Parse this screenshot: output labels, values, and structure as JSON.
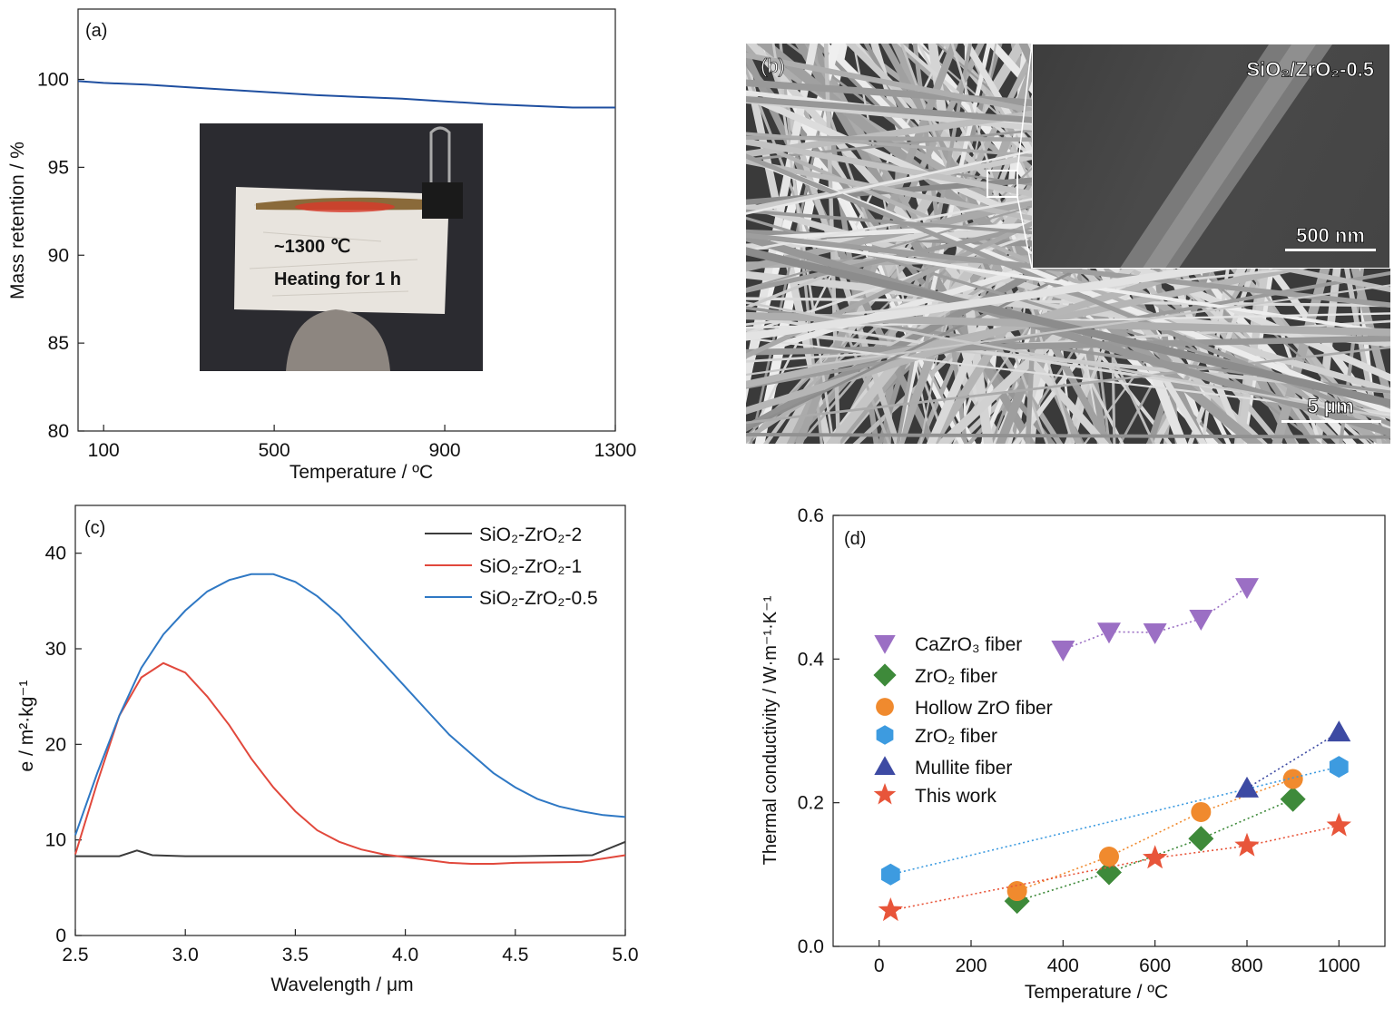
{
  "panels": {
    "a": {
      "label": "(a)",
      "inset_text_1": "~1300 ℃",
      "inset_text_2": "Heating for 1 h"
    },
    "b": {
      "label": "(b)",
      "inset_label": "SiO₂/ZrO₂-0.5",
      "inset_scale": "500 nm",
      "scale": "5 μm"
    },
    "c": {
      "label": "(c)"
    },
    "d": {
      "label": "(d)"
    }
  },
  "chart_data": [
    {
      "id": "a",
      "type": "line",
      "xlabel": "Temperature  / ºC",
      "ylabel": "Mass retention / %",
      "xlim": [
        40,
        1300
      ],
      "ylim": [
        80,
        104
      ],
      "xticks": [
        100,
        500,
        900,
        1300
      ],
      "yticks": [
        80,
        85,
        90,
        95,
        100
      ],
      "series": [
        {
          "color": "#1f4fa0",
          "x": [
            40,
            100,
            200,
            300,
            400,
            500,
            600,
            700,
            800,
            900,
            1000,
            1100,
            1200,
            1300
          ],
          "y": [
            99.9,
            99.8,
            99.7,
            99.55,
            99.4,
            99.25,
            99.1,
            99.0,
            98.9,
            98.75,
            98.6,
            98.5,
            98.4,
            98.4
          ]
        }
      ]
    },
    {
      "id": "c",
      "type": "line",
      "xlabel": "Wavelength / μm",
      "ylabel": "e / m²·kg⁻¹",
      "xlim": [
        2.5,
        5.0
      ],
      "ylim": [
        0,
        45
      ],
      "xticks": [
        2.5,
        3.0,
        3.5,
        4.0,
        4.5,
        5.0
      ],
      "yticks": [
        0,
        10,
        20,
        30,
        40
      ],
      "legend": "top-right",
      "series": [
        {
          "name": "SiO₂-ZrO₂-2",
          "color": "#3c3c3c",
          "x": [
            2.5,
            2.7,
            2.78,
            2.85,
            3.0,
            3.5,
            4.0,
            4.5,
            4.85,
            5.0
          ],
          "y": [
            8.3,
            8.3,
            8.9,
            8.4,
            8.3,
            8.3,
            8.3,
            8.3,
            8.4,
            9.8
          ]
        },
        {
          "name": "SiO₂-ZrO₂-1",
          "color": "#e1483c",
          "x": [
            2.5,
            2.6,
            2.7,
            2.8,
            2.9,
            3.0,
            3.1,
            3.2,
            3.3,
            3.4,
            3.5,
            3.6,
            3.7,
            3.8,
            3.9,
            4.0,
            4.1,
            4.2,
            4.3,
            4.4,
            4.5,
            4.8,
            5.0
          ],
          "y": [
            8.5,
            16,
            23,
            27,
            28.5,
            27.5,
            25,
            22,
            18.5,
            15.5,
            13,
            11,
            9.8,
            9,
            8.5,
            8.2,
            7.9,
            7.6,
            7.5,
            7.5,
            7.6,
            7.7,
            8.4
          ]
        },
        {
          "name": "SiO₂-ZrO₂-0.5",
          "color": "#2f78c4",
          "x": [
            2.5,
            2.6,
            2.7,
            2.8,
            2.9,
            3.0,
            3.1,
            3.2,
            3.3,
            3.4,
            3.5,
            3.6,
            3.7,
            3.8,
            3.9,
            4.0,
            4.1,
            4.2,
            4.3,
            4.4,
            4.5,
            4.6,
            4.7,
            4.8,
            4.9,
            5.0
          ],
          "y": [
            10.5,
            17,
            23,
            28,
            31.5,
            34,
            36,
            37.2,
            37.8,
            37.8,
            37,
            35.5,
            33.5,
            31,
            28.5,
            26,
            23.5,
            21,
            19,
            17,
            15.5,
            14.3,
            13.5,
            13,
            12.6,
            12.4
          ]
        }
      ]
    },
    {
      "id": "d",
      "type": "scatter",
      "xlabel": "Temperature / ºC",
      "ylabel": "Thermal conductivity / W·m⁻¹·K⁻¹",
      "xlim": [
        -100,
        1100
      ],
      "ylim": [
        0.0,
        0.6
      ],
      "xticks": [
        0,
        200,
        400,
        600,
        800,
        1000
      ],
      "yticks": [
        0.0,
        0.2,
        0.4,
        0.6
      ],
      "legend": "upper-left",
      "series": [
        {
          "name": "CaZrO₃ fiber",
          "marker": "tri-down",
          "color": "#9b6fc4",
          "x": [
            400,
            500,
            600,
            700,
            800
          ],
          "y": [
            0.413,
            0.438,
            0.437,
            0.456,
            0.5
          ]
        },
        {
          "name": "ZrO₂ fiber",
          "marker": "diamond",
          "color": "#3e8a3a",
          "x": [
            300,
            500,
            700,
            900
          ],
          "y": [
            0.063,
            0.103,
            0.15,
            0.205
          ]
        },
        {
          "name": "Hollow ZrO fiber",
          "marker": "circle",
          "color": "#f08a2e",
          "x": [
            300,
            500,
            700,
            900
          ],
          "y": [
            0.077,
            0.125,
            0.187,
            0.233
          ]
        },
        {
          "name": "ZrO₂ fiber",
          "marker": "hexagon",
          "color": "#3d9be0",
          "x": [
            25,
            1000
          ],
          "y": [
            0.1,
            0.25
          ]
        },
        {
          "name": "Mullite fiber",
          "marker": "tri-up",
          "color": "#3d4aa3",
          "x": [
            800,
            1000
          ],
          "y": [
            0.22,
            0.298
          ]
        },
        {
          "name": "This work",
          "marker": "star",
          "color": "#e8553a",
          "x": [
            25,
            600,
            800,
            1000
          ],
          "y": [
            0.05,
            0.123,
            0.14,
            0.168
          ]
        }
      ]
    }
  ]
}
